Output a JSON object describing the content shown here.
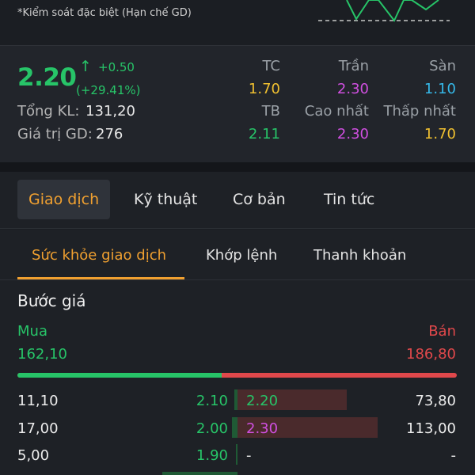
{
  "header": {
    "note": "*Kiểm soát đặc biệt (Hạn chế GD)"
  },
  "quote": {
    "price": "2.20",
    "change_arrow": "↑",
    "change": "+0.50",
    "change_pct": "(+29.41%)",
    "total_volume_label": "Tổng KL:",
    "total_volume": "131,20",
    "trade_value_label": "Giá trị GD:",
    "trade_value": "276",
    "columns": [
      {
        "label": "TC",
        "value": "1.70",
        "color": "#f0c030"
      },
      {
        "label": "Trần",
        "value": "2.30",
        "color": "#d04fe0"
      },
      {
        "label": "Sàn",
        "value": "1.10",
        "color": "#35b8e8"
      },
      {
        "label": "TB",
        "value": "2.11",
        "color": "#27c468"
      },
      {
        "label": "Cao nhất",
        "value": "2.30",
        "color": "#d04fe0"
      },
      {
        "label": "Thấp nhất",
        "value": "1.70",
        "color": "#f0c030"
      }
    ]
  },
  "tabs": [
    "Giao dịch",
    "Kỹ thuật",
    "Cơ bản",
    "Tin tức"
  ],
  "subtabs": [
    "Sức khỏe giao dịch",
    "Khớp lệnh",
    "Thanh khoản"
  ],
  "order_book": {
    "title": "Bước giá",
    "buy_label": "Mua",
    "sell_label": "Bán",
    "buy_total": "162,10",
    "sell_total": "186,80",
    "buy_ratio": 0.465,
    "rows": [
      {
        "buy_qty": "11,10",
        "buy_price": "2.10",
        "buy_level": 0.06,
        "sell_price": "2.20",
        "sell_level": 0.78,
        "sell_qty": "73,80",
        "sell_color": "#27c468"
      },
      {
        "buy_qty": "17,00",
        "buy_price": "2.00",
        "buy_level": 0.11,
        "sell_price": "2.30",
        "sell_level": 1.0,
        "sell_qty": "113,00",
        "sell_color": "#d04fe0"
      },
      {
        "buy_qty": "5,00",
        "buy_price": "1.90",
        "buy_level": 0.04,
        "sell_price": "-",
        "sell_level": 0,
        "sell_qty": "-",
        "sell_color": "#e6e6e6"
      }
    ]
  },
  "colors": {
    "up": "#27c468",
    "down": "#e0484b",
    "accent": "#f0a030"
  }
}
